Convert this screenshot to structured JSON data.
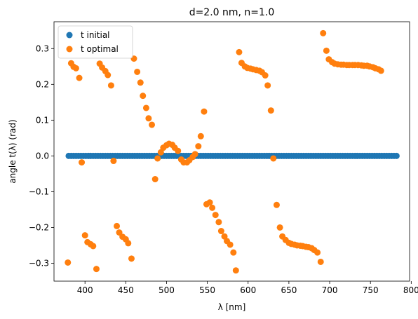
{
  "chart_data": {
    "type": "scatter",
    "title": "d=2.0 nm, n=1.0",
    "xlabel": "λ [nm]",
    "ylabel": "angle t(λ) (rad)",
    "xlim": [
      362,
      798
    ],
    "ylim": [
      -0.35,
      0.375
    ],
    "xticks": [
      400,
      450,
      500,
      550,
      600,
      650,
      700,
      750,
      800
    ],
    "yticks": [
      -0.3,
      -0.2,
      -0.1,
      0.0,
      0.1,
      0.2,
      0.3
    ],
    "ytick_labels": [
      "−0.3",
      "−0.2",
      "−0.1",
      "0.0",
      "0.1",
      "0.2",
      "0.3"
    ],
    "grid": false,
    "legend": "top-left",
    "series": [
      {
        "name": "t initial",
        "color": "#1f77b4",
        "x_start": 380,
        "x_step": 3,
        "count": 135,
        "value": 0.0
      },
      {
        "name": "t optimal",
        "color": "#ff7f0e",
        "points": [
          [
            379,
            -0.298
          ],
          [
            383,
            0.259
          ],
          [
            386,
            0.249
          ],
          [
            389,
            0.245
          ],
          [
            393,
            0.218
          ],
          [
            396,
            -0.018
          ],
          [
            400,
            -0.222
          ],
          [
            403,
            -0.241
          ],
          [
            407,
            -0.247
          ],
          [
            410,
            -0.252
          ],
          [
            414,
            -0.316
          ],
          [
            418,
            0.258
          ],
          [
            421,
            0.247
          ],
          [
            425,
            0.237
          ],
          [
            428,
            0.226
          ],
          [
            432,
            0.197
          ],
          [
            435,
            -0.014
          ],
          [
            439,
            -0.196
          ],
          [
            442,
            -0.214
          ],
          [
            446,
            -0.226
          ],
          [
            450,
            -0.233
          ],
          [
            453,
            -0.244
          ],
          [
            457,
            -0.287
          ],
          [
            460,
            0.272
          ],
          [
            464,
            0.235
          ],
          [
            468,
            0.205
          ],
          [
            471,
            0.168
          ],
          [
            475,
            0.134
          ],
          [
            478,
            0.105
          ],
          [
            482,
            0.087
          ],
          [
            486,
            -0.065
          ],
          [
            489,
            -0.007
          ],
          [
            493,
            0.01
          ],
          [
            496,
            0.023
          ],
          [
            500,
            0.03
          ],
          [
            503,
            0.034
          ],
          [
            507,
            0.031
          ],
          [
            510,
            0.023
          ],
          [
            514,
            0.014
          ],
          [
            518,
            -0.01
          ],
          [
            521,
            -0.018
          ],
          [
            525,
            -0.018
          ],
          [
            528,
            -0.012
          ],
          [
            532,
            -0.003
          ],
          [
            535,
            0.005
          ],
          [
            539,
            0.027
          ],
          [
            542,
            0.055
          ],
          [
            546,
            0.124
          ],
          [
            549,
            -0.135
          ],
          [
            553,
            -0.13
          ],
          [
            556,
            -0.145
          ],
          [
            560,
            -0.165
          ],
          [
            564,
            -0.185
          ],
          [
            567,
            -0.21
          ],
          [
            571,
            -0.225
          ],
          [
            574,
            -0.238
          ],
          [
            578,
            -0.248
          ],
          [
            582,
            -0.27
          ],
          [
            585,
            -0.32
          ],
          [
            589,
            0.29
          ],
          [
            592,
            0.26
          ],
          [
            596,
            0.25
          ],
          [
            599,
            0.246
          ],
          [
            603,
            0.244
          ],
          [
            606,
            0.242
          ],
          [
            610,
            0.24
          ],
          [
            614,
            0.238
          ],
          [
            617,
            0.234
          ],
          [
            621,
            0.225
          ],
          [
            624,
            0.197
          ],
          [
            628,
            0.127
          ],
          [
            631,
            -0.007
          ],
          [
            635,
            -0.137
          ],
          [
            639,
            -0.2
          ],
          [
            642,
            -0.225
          ],
          [
            646,
            -0.235
          ],
          [
            650,
            -0.243
          ],
          [
            653,
            -0.246
          ],
          [
            657,
            -0.248
          ],
          [
            660,
            -0.25
          ],
          [
            664,
            -0.251
          ],
          [
            667,
            -0.252
          ],
          [
            671,
            -0.254
          ],
          [
            674,
            -0.255
          ],
          [
            678,
            -0.258
          ],
          [
            681,
            -0.263
          ],
          [
            685,
            -0.27
          ],
          [
            689,
            -0.296
          ],
          [
            692,
            0.343
          ],
          [
            696,
            0.294
          ],
          [
            699,
            0.27
          ],
          [
            703,
            0.262
          ],
          [
            706,
            0.258
          ],
          [
            710,
            0.256
          ],
          [
            714,
            0.255
          ],
          [
            717,
            0.255
          ],
          [
            721,
            0.254
          ],
          [
            724,
            0.254
          ],
          [
            728,
            0.254
          ],
          [
            731,
            0.254
          ],
          [
            735,
            0.254
          ],
          [
            739,
            0.253
          ],
          [
            742,
            0.252
          ],
          [
            746,
            0.252
          ],
          [
            749,
            0.25
          ],
          [
            753,
            0.248
          ],
          [
            756,
            0.245
          ],
          [
            760,
            0.242
          ],
          [
            763,
            0.238
          ]
        ]
      }
    ]
  }
}
